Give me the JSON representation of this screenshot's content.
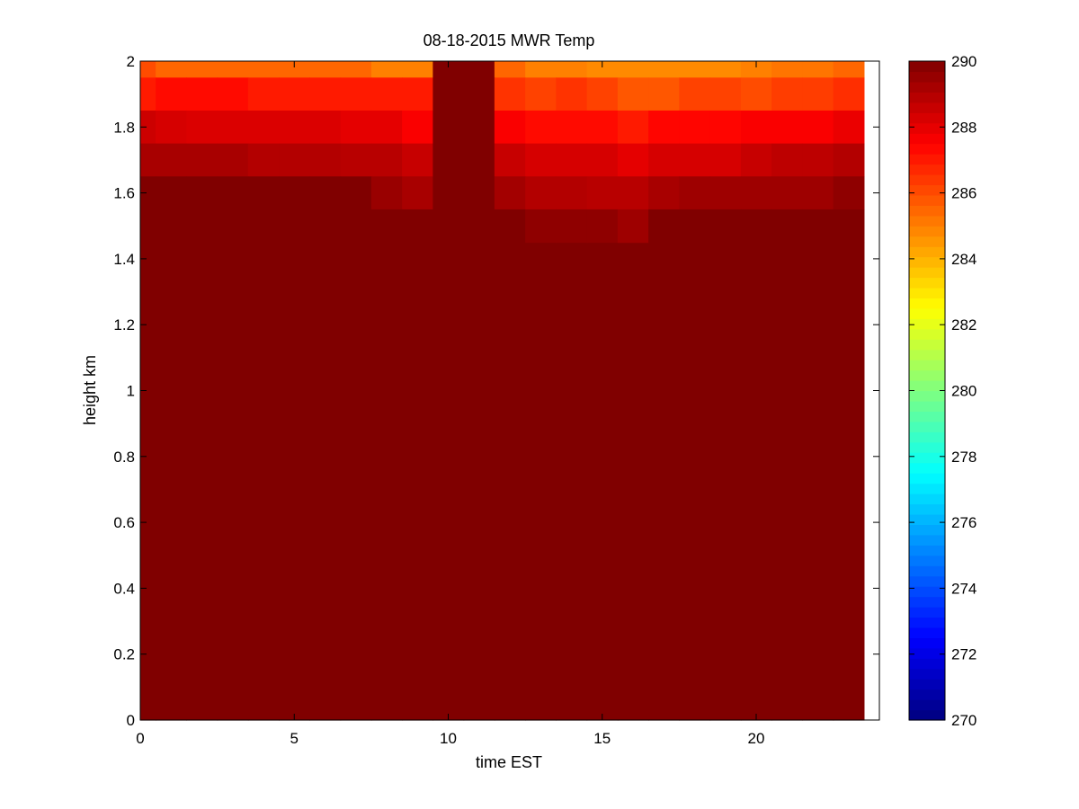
{
  "chart_data": {
    "type": "heatmap",
    "title": "08-18-2015 MWR Temp",
    "xlabel": "time EST",
    "ylabel": "height km",
    "xlim": [
      0,
      24
    ],
    "ylim": [
      0,
      2
    ],
    "xticks": [
      0,
      5,
      10,
      15,
      20
    ],
    "yticks": [
      0,
      0.2,
      0.4,
      0.6,
      0.8,
      1,
      1.2,
      1.4,
      1.6,
      1.8,
      2
    ],
    "colormap": "jet",
    "clim": [
      270,
      290
    ],
    "colorbar_ticks": [
      270,
      272,
      274,
      276,
      278,
      280,
      282,
      284,
      286,
      288,
      290
    ],
    "grid": false,
    "x_centers": [
      0,
      1,
      2,
      3,
      4,
      5,
      6,
      7,
      8,
      9,
      10,
      11,
      12,
      13,
      14,
      15,
      16,
      17,
      18,
      19,
      20,
      21,
      22,
      23
    ],
    "y_levels": [
      0,
      0.1,
      0.2,
      0.3,
      0.4,
      0.5,
      0.6,
      0.7,
      0.8,
      0.9,
      1.0,
      1.1,
      1.2,
      1.3,
      1.4,
      1.5,
      1.6,
      1.7,
      1.8,
      1.9,
      2.0
    ],
    "upper_rows": [
      {
        "height": 2.0,
        "values": [
          286,
          285.5,
          285.5,
          285.5,
          285.5,
          285.5,
          285.5,
          285.5,
          285,
          285,
          290,
          290,
          285.5,
          285,
          285,
          284.8,
          284.8,
          284.8,
          284.8,
          284.8,
          285,
          285.2,
          285.2,
          285.5
        ]
      },
      {
        "height": 1.9,
        "values": [
          287,
          287.3,
          287.3,
          287.3,
          287,
          287,
          287,
          287,
          287,
          287,
          290,
          290,
          286.5,
          286.2,
          286.5,
          286.2,
          285.8,
          285.8,
          286.2,
          286.2,
          286,
          286.3,
          286.3,
          286.6
        ]
      },
      {
        "height": 1.8,
        "values": [
          288.5,
          288.3,
          288.2,
          288.2,
          288.2,
          288.2,
          288.2,
          288,
          288,
          287.6,
          290,
          290,
          287.6,
          287.3,
          287.3,
          287.3,
          287,
          287.4,
          287.4,
          287.4,
          287.6,
          287.6,
          287.6,
          287.9
        ]
      },
      {
        "height": 1.7,
        "values": [
          289.2,
          289.2,
          289.2,
          289.2,
          289.0,
          289.0,
          289.0,
          288.9,
          288.9,
          288.6,
          290,
          290,
          288.6,
          288.3,
          288.3,
          288.3,
          288.0,
          288.3,
          288.3,
          288.3,
          288.6,
          288.8,
          288.8,
          289.0
        ]
      },
      {
        "height": 1.6,
        "values": [
          290,
          290,
          290,
          290,
          290,
          290,
          290,
          290,
          289.5,
          289.2,
          290,
          290,
          289.3,
          289.0,
          289.0,
          288.9,
          288.9,
          289.2,
          289.4,
          289.4,
          289.4,
          289.4,
          289.4,
          289.7
        ]
      },
      {
        "height": 1.5,
        "values": [
          290,
          290,
          290,
          290,
          290,
          290,
          290,
          290,
          290,
          290,
          290,
          290,
          290,
          289.7,
          289.7,
          289.7,
          289.4,
          290,
          290,
          290,
          290,
          290,
          290,
          290
        ]
      }
    ],
    "below_value": 290
  }
}
